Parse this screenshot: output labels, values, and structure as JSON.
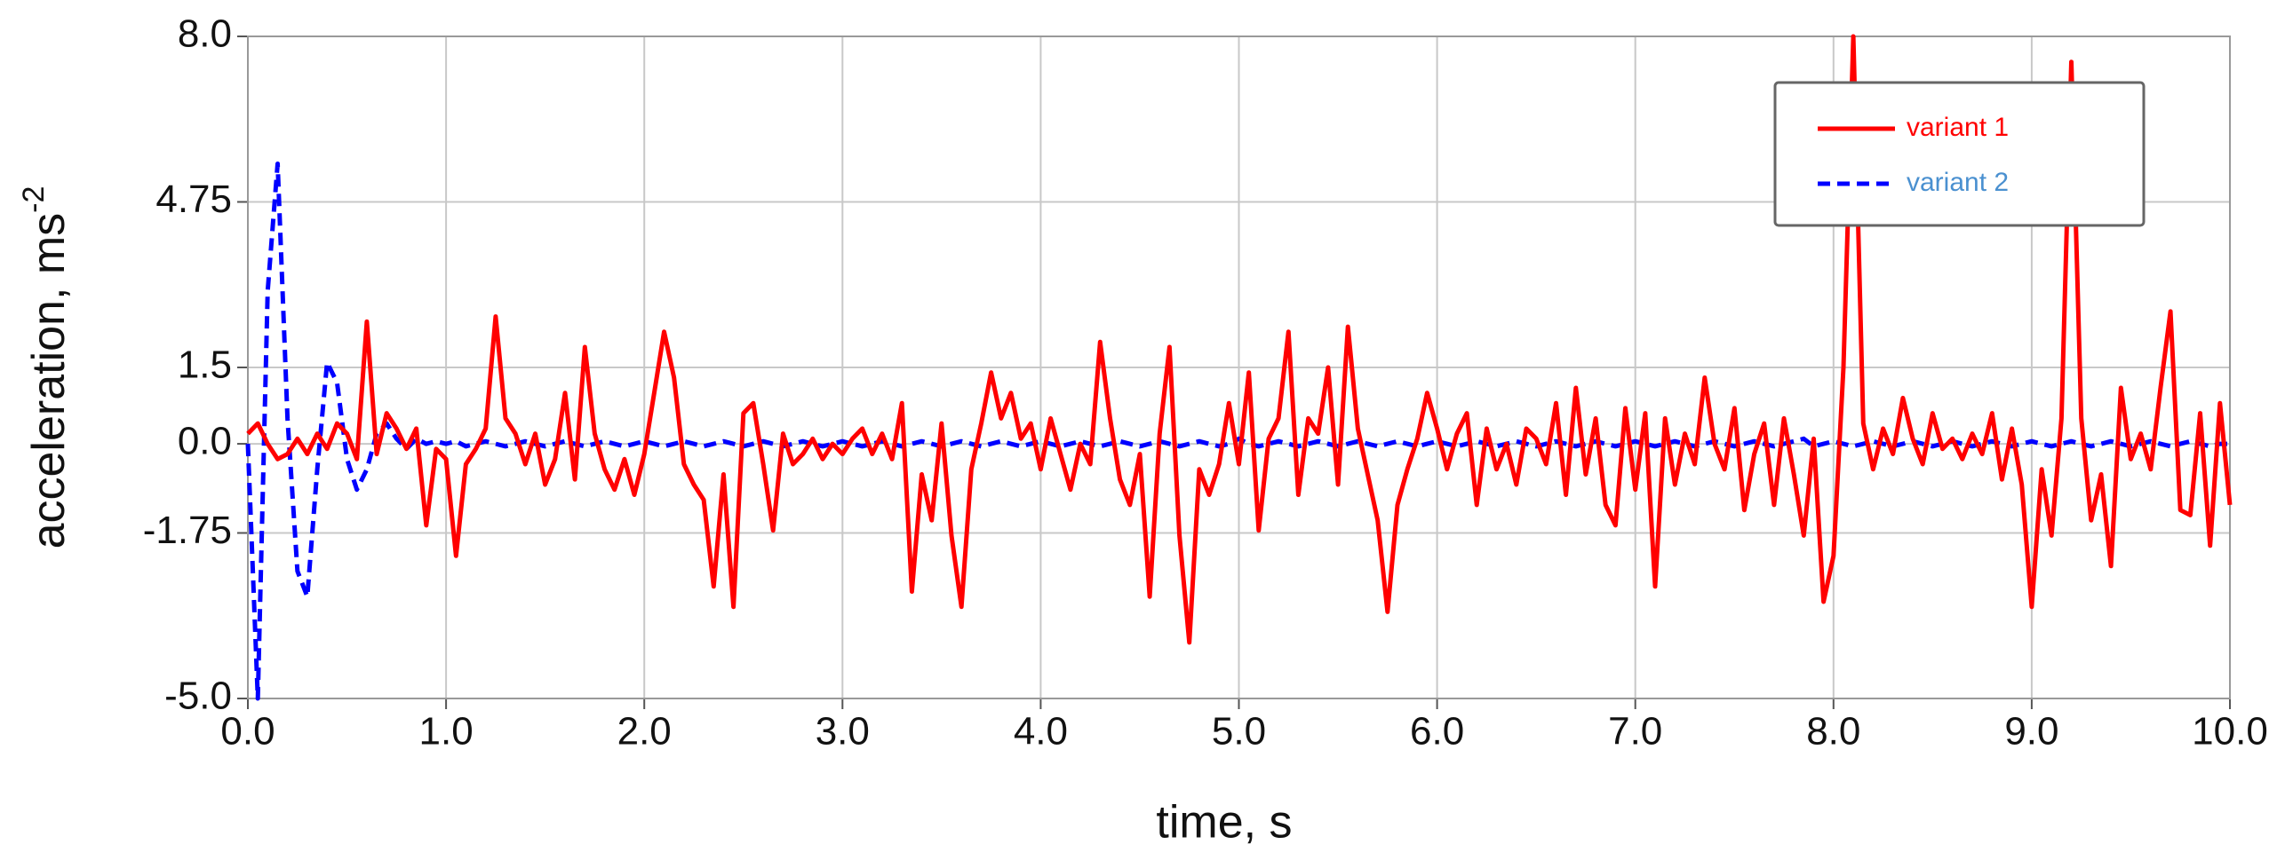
{
  "chart_data": {
    "type": "line",
    "xlabel": "time, s",
    "ylabel": "acceleration, ms",
    "ylabel_sup": "-2",
    "x": [
      0.0,
      0.05,
      0.1,
      0.15,
      0.2,
      0.25,
      0.3,
      0.35,
      0.4,
      0.45,
      0.5,
      0.55,
      0.6,
      0.65,
      0.7,
      0.75,
      0.8,
      0.85,
      0.9,
      0.95,
      1.0,
      1.05,
      1.1,
      1.15,
      1.2,
      1.25,
      1.3,
      1.35,
      1.4,
      1.45,
      1.5,
      1.55,
      1.6,
      1.65,
      1.7,
      1.75,
      1.8,
      1.85,
      1.9,
      1.95,
      2.0,
      2.05,
      2.1,
      2.15,
      2.2,
      2.25,
      2.3,
      2.35,
      2.4,
      2.45,
      2.5,
      2.55,
      2.6,
      2.65,
      2.7,
      2.75,
      2.8,
      2.85,
      2.9,
      2.95,
      3.0,
      3.05,
      3.1,
      3.15,
      3.2,
      3.25,
      3.3,
      3.35,
      3.4,
      3.45,
      3.5,
      3.55,
      3.6,
      3.65,
      3.7,
      3.75,
      3.8,
      3.85,
      3.9,
      3.95,
      4.0,
      4.05,
      4.1,
      4.15,
      4.2,
      4.25,
      4.3,
      4.35,
      4.4,
      4.45,
      4.5,
      4.55,
      4.6,
      4.65,
      4.7,
      4.75,
      4.8,
      4.85,
      4.9,
      4.95,
      5.0,
      5.05,
      5.1,
      5.15,
      5.2,
      5.25,
      5.3,
      5.35,
      5.4,
      5.45,
      5.5,
      5.55,
      5.6,
      5.65,
      5.7,
      5.75,
      5.8,
      5.85,
      5.9,
      5.95,
      6.0,
      6.05,
      6.1,
      6.15,
      6.2,
      6.25,
      6.3,
      6.35,
      6.4,
      6.45,
      6.5,
      6.55,
      6.6,
      6.65,
      6.7,
      6.75,
      6.8,
      6.85,
      6.9,
      6.95,
      7.0,
      7.05,
      7.1,
      7.15,
      7.2,
      7.25,
      7.3,
      7.35,
      7.4,
      7.45,
      7.5,
      7.55,
      7.6,
      7.65,
      7.7,
      7.75,
      7.8,
      7.85,
      7.9,
      7.95,
      8.0,
      8.05,
      8.1,
      8.15,
      8.2,
      8.25,
      8.3,
      8.35,
      8.4,
      8.45,
      8.5,
      8.55,
      8.6,
      8.65,
      8.7,
      8.75,
      8.8,
      8.85,
      8.9,
      8.95,
      9.0,
      9.05,
      9.1,
      9.15,
      9.2,
      9.25,
      9.3,
      9.35,
      9.4,
      9.45,
      9.5,
      9.55,
      9.6,
      9.65,
      9.7,
      9.75,
      9.8,
      9.85,
      9.9,
      9.95,
      10.0
    ],
    "series": [
      {
        "name": "variant 1",
        "color": "#ff0000",
        "label_color": "#ff0000",
        "dash": "solid",
        "values": [
          0.2,
          0.4,
          0.0,
          -0.3,
          -0.2,
          0.1,
          -0.2,
          0.2,
          -0.1,
          0.4,
          0.2,
          -0.3,
          2.4,
          -0.2,
          0.6,
          0.3,
          -0.1,
          0.3,
          -1.6,
          -0.1,
          -0.3,
          -2.2,
          -0.4,
          -0.1,
          0.3,
          2.5,
          0.5,
          0.2,
          -0.4,
          0.2,
          -0.8,
          -0.3,
          1.0,
          -0.7,
          1.9,
          0.2,
          -0.5,
          -0.9,
          -0.3,
          -1.0,
          -0.2,
          1.0,
          2.2,
          1.3,
          -0.4,
          -0.8,
          -1.1,
          -2.8,
          -0.6,
          -3.2,
          0.6,
          0.8,
          -0.4,
          -1.7,
          0.2,
          -0.4,
          -0.2,
          0.1,
          -0.3,
          0.0,
          -0.2,
          0.1,
          0.3,
          -0.2,
          0.2,
          -0.3,
          0.8,
          -2.9,
          -0.6,
          -1.5,
          0.4,
          -1.8,
          -3.2,
          -0.5,
          0.4,
          1.4,
          0.5,
          1.0,
          0.1,
          0.4,
          -0.5,
          0.5,
          -0.2,
          -0.9,
          0.0,
          -0.4,
          2.0,
          0.5,
          -0.7,
          -1.2,
          -0.2,
          -3.0,
          0.2,
          1.9,
          -1.8,
          -3.9,
          -0.5,
          -1.0,
          -0.4,
          0.8,
          -0.4,
          1.4,
          -1.7,
          0.1,
          0.5,
          2.2,
          -1.0,
          0.5,
          0.2,
          1.5,
          -0.8,
          2.3,
          0.3,
          -0.6,
          -1.5,
          -3.3,
          -1.2,
          -0.5,
          0.1,
          1.0,
          0.3,
          -0.5,
          0.2,
          0.6,
          -1.2,
          0.3,
          -0.5,
          0.0,
          -0.8,
          0.3,
          0.1,
          -0.4,
          0.8,
          -1.0,
          1.1,
          -0.6,
          0.5,
          -1.2,
          -1.6,
          0.7,
          -0.9,
          0.6,
          -2.8,
          0.5,
          -0.8,
          0.2,
          -0.4,
          1.3,
          0.0,
          -0.5,
          0.7,
          -1.3,
          -0.2,
          0.4,
          -1.2,
          0.5,
          -0.6,
          -1.8,
          0.1,
          -3.1,
          -2.2,
          1.5,
          8.0,
          0.4,
          -0.5,
          0.3,
          -0.2,
          0.9,
          0.1,
          -0.4,
          0.6,
          -0.1,
          0.1,
          -0.3,
          0.2,
          -0.2,
          0.6,
          -0.7,
          0.3,
          -0.8,
          -3.2,
          -0.5,
          -1.8,
          0.5,
          7.5,
          0.5,
          -1.5,
          -0.6,
          -2.4,
          1.1,
          -0.3,
          0.2,
          -0.5,
          1.1,
          2.6,
          -1.3,
          -1.4,
          0.6,
          -2.0,
          0.8,
          -1.2
        ]
      },
      {
        "name": "variant 2",
        "color": "#0000ff",
        "label_color": "#4a90d0",
        "dash": "dashed",
        "values": [
          0.0,
          -5.0,
          3.0,
          5.5,
          0.5,
          -2.5,
          -3.0,
          -0.5,
          1.6,
          1.2,
          -0.3,
          -0.9,
          -0.5,
          0.2,
          0.4,
          0.1,
          -0.1,
          0.1,
          0.0,
          0.05,
          0.0,
          0.05,
          -0.05,
          0.0,
          0.05,
          0.0,
          -0.05,
          0.0,
          0.05,
          0.0,
          -0.05,
          0.0,
          0.05,
          0.0,
          -0.05,
          0.0,
          0.05,
          0.0,
          -0.05,
          0.0,
          0.05,
          0.0,
          -0.05,
          0.0,
          0.05,
          0.0,
          -0.05,
          0.0,
          0.05,
          0.0,
          -0.05,
          0.0,
          0.05,
          0.0,
          -0.05,
          0.0,
          0.05,
          0.0,
          -0.05,
          0.0,
          0.05,
          0.0,
          -0.05,
          0.0,
          0.05,
          0.0,
          -0.05,
          0.0,
          0.05,
          0.0,
          -0.05,
          0.0,
          0.05,
          0.0,
          -0.05,
          0.0,
          0.05,
          0.0,
          -0.05,
          0.0,
          0.05,
          0.0,
          -0.05,
          0.0,
          0.05,
          0.0,
          -0.05,
          0.0,
          0.05,
          0.0,
          -0.05,
          0.0,
          0.05,
          0.0,
          -0.05,
          0.0,
          0.05,
          0.0,
          -0.05,
          0.0,
          0.1,
          0.0,
          -0.05,
          0.0,
          0.05,
          0.0,
          -0.05,
          0.0,
          0.05,
          0.0,
          -0.05,
          0.0,
          0.05,
          0.0,
          -0.05,
          0.0,
          0.05,
          0.0,
          -0.05,
          0.0,
          0.05,
          0.0,
          -0.05,
          0.0,
          0.05,
          0.0,
          -0.05,
          0.0,
          0.05,
          0.0,
          -0.05,
          0.0,
          0.05,
          0.0,
          -0.05,
          0.0,
          0.05,
          0.0,
          -0.05,
          0.0,
          0.05,
          0.0,
          -0.05,
          0.0,
          0.05,
          0.0,
          -0.05,
          0.0,
          0.05,
          0.0,
          -0.05,
          0.0,
          0.05,
          0.0,
          -0.05,
          0.0,
          0.05,
          0.1,
          -0.05,
          0.0,
          0.05,
          0.0,
          -0.05,
          0.0,
          0.05,
          0.0,
          -0.05,
          0.0,
          0.05,
          0.0,
          -0.05,
          0.0,
          0.05,
          0.0,
          -0.05,
          0.0,
          0.05,
          0.0,
          -0.05,
          0.0,
          0.05,
          0.0,
          -0.05,
          0.0,
          0.05,
          0.0,
          -0.05,
          0.0,
          0.05,
          0.0,
          -0.05,
          0.0,
          0.05,
          0.0,
          -0.05,
          0.0,
          0.05,
          0.0,
          -0.05,
          0.0,
          0.0
        ]
      }
    ],
    "xlim": [
      0,
      10
    ],
    "ylim": [
      -5,
      8
    ],
    "xticks": [
      {
        "value": 0,
        "label": "0.0"
      },
      {
        "value": 1,
        "label": "1.0"
      },
      {
        "value": 2,
        "label": "2.0"
      },
      {
        "value": 3,
        "label": "3.0"
      },
      {
        "value": 4,
        "label": "4.0"
      },
      {
        "value": 5,
        "label": "5.0"
      },
      {
        "value": 6,
        "label": "6.0"
      },
      {
        "value": 7,
        "label": "7.0"
      },
      {
        "value": 8,
        "label": "8.0"
      },
      {
        "value": 9,
        "label": "9.0"
      },
      {
        "value": 10,
        "label": "10.0"
      }
    ],
    "yticks": [
      {
        "value": -5,
        "label": "-5.0"
      },
      -1.75,
      {
        "value": 0,
        "label": "0.0"
      },
      1.5,
      4.75,
      {
        "value": 8,
        "label": "8.0"
      }
    ],
    "grid": true,
    "legend": "top-right"
  }
}
